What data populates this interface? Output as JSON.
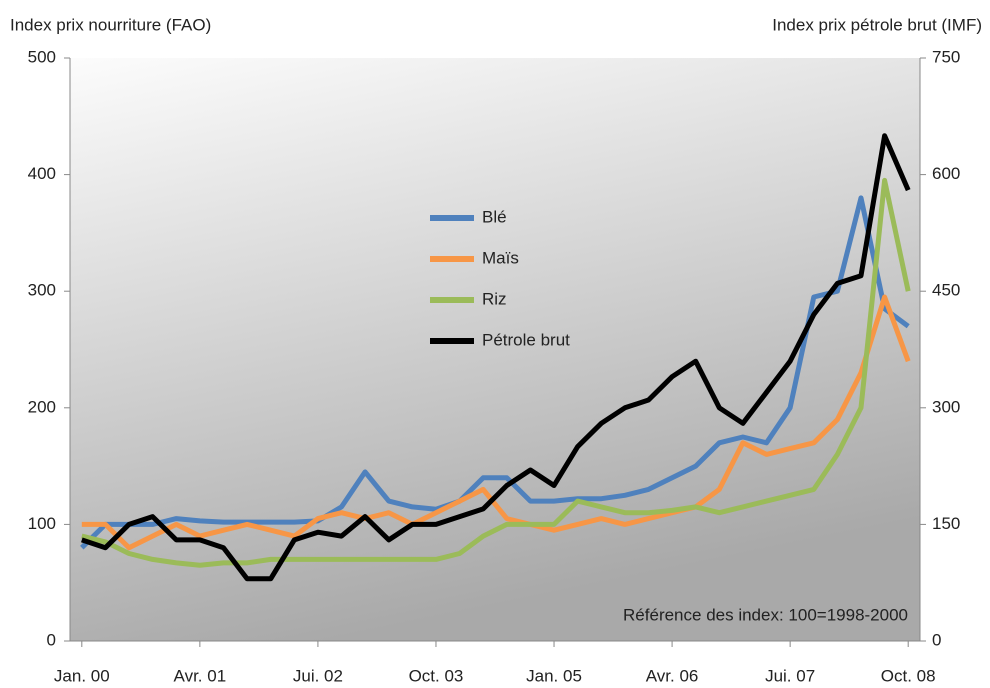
{
  "chart_data": {
    "type": "line",
    "ylabel": "Index prix nourriture (FAO)",
    "y2label": "Index prix pétrole brut (IMF)",
    "annotation": "Référence des index: 100=1998-2000",
    "categories": [
      "Jan. 00",
      null,
      null,
      null,
      null,
      "Avr. 01",
      null,
      null,
      null,
      null,
      "Jui. 02",
      null,
      null,
      null,
      null,
      "Oct. 03",
      null,
      null,
      null,
      null,
      "Jan. 05",
      null,
      null,
      null,
      null,
      "Avr. 06",
      null,
      null,
      null,
      null,
      "Jui. 07",
      null,
      null,
      null,
      null,
      "Oct. 08"
    ],
    "series": [
      {
        "name": "Blé",
        "color": "#4f81bd",
        "values": [
          80,
          100,
          100,
          100,
          105,
          103,
          102,
          102,
          102,
          102,
          103,
          115,
          145,
          120,
          115,
          113,
          120,
          140,
          140,
          120,
          120,
          122,
          122,
          125,
          130,
          140,
          150,
          170,
          175,
          170,
          200,
          295,
          300,
          380,
          285,
          270
        ]
      },
      {
        "name": "Maïs",
        "color": "#f79646",
        "values": [
          100,
          100,
          80,
          90,
          100,
          90,
          95,
          100,
          95,
          90,
          105,
          110,
          105,
          110,
          100,
          110,
          120,
          130,
          105,
          100,
          95,
          100,
          105,
          100,
          105,
          110,
          115,
          130,
          170,
          160,
          165,
          170,
          190,
          230,
          295,
          240
        ]
      },
      {
        "name": "Riz",
        "color": "#9bbb59",
        "values": [
          90,
          85,
          75,
          70,
          67,
          65,
          67,
          67,
          70,
          70,
          70,
          70,
          70,
          70,
          70,
          70,
          75,
          90,
          100,
          100,
          100,
          120,
          115,
          110,
          110,
          112,
          115,
          110,
          115,
          120,
          125,
          130,
          160,
          200,
          395,
          300
        ]
      },
      {
        "name": "Pétrole brut",
        "color": "#000000",
        "axis": "y2",
        "values": [
          130,
          120,
          150,
          160,
          130,
          130,
          120,
          80,
          80,
          130,
          140,
          135,
          160,
          130,
          150,
          150,
          160,
          170,
          200,
          220,
          200,
          250,
          280,
          300,
          310,
          340,
          360,
          300,
          280,
          320,
          360,
          420,
          460,
          470,
          650,
          580
        ]
      }
    ],
    "ylim": [
      0,
      500
    ],
    "yticks": [
      0,
      100,
      200,
      300,
      400,
      500
    ],
    "y2lim": [
      0,
      750
    ],
    "y2ticks": [
      0,
      150,
      300,
      450,
      600,
      750
    ]
  }
}
